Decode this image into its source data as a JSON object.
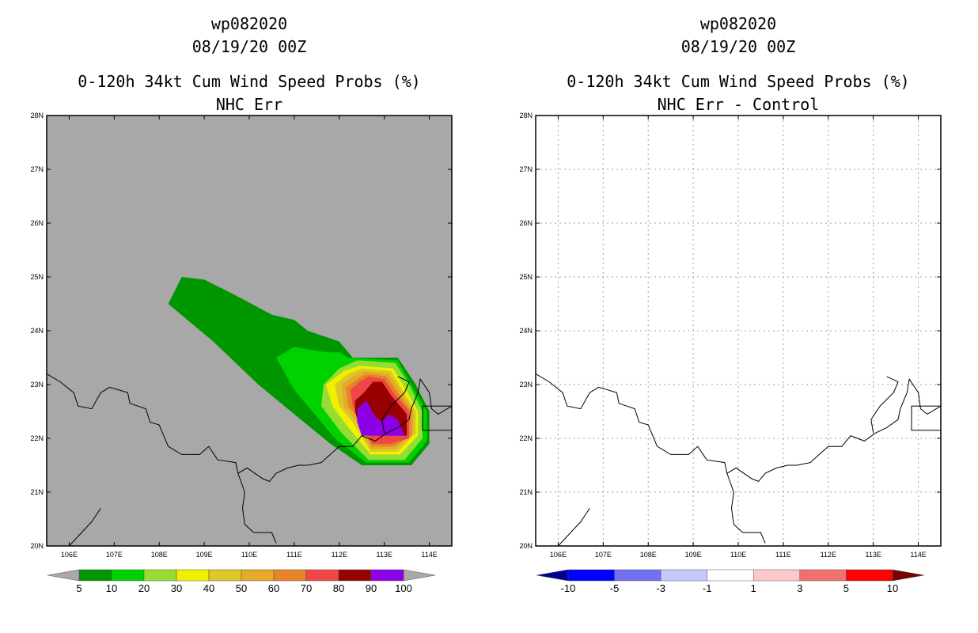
{
  "panels": [
    {
      "title_lines": [
        "wp082020",
        "08/19/20 00Z",
        "0-120h 34kt Cum Wind Speed Probs (%)",
        "NHC Err"
      ],
      "background": "#a8a8a8",
      "colorbar": {
        "labels": [
          "5",
          "10",
          "20",
          "30",
          "40",
          "50",
          "60",
          "70",
          "80",
          "90",
          "100"
        ],
        "colors": [
          "#009600",
          "#00d200",
          "#96dc32",
          "#f0f000",
          "#dcc828",
          "#e6aa28",
          "#e68228",
          "#f04646",
          "#960000",
          "#8c00e6"
        ],
        "under_color": "#a8a8a8",
        "over_color": "#a8a8a8"
      }
    },
    {
      "title_lines": [
        "wp082020",
        "08/19/20 00Z",
        "0-120h 34kt Cum Wind Speed Probs (%)",
        "NHC Err - Control"
      ],
      "background": "#ffffff",
      "colorbar": {
        "labels": [
          "-10",
          "-5",
          "-3",
          "-1",
          "1",
          "3",
          "5",
          "10"
        ],
        "colors": [
          "#0000ff",
          "#7070f0",
          "#c8c8ff",
          "#ffffff",
          "#ffc8c8",
          "#f07070",
          "#ff0000"
        ],
        "under_color": "#000096",
        "over_color": "#780000"
      }
    }
  ],
  "chart_data": [
    {
      "type": "filled-contour-map",
      "title": "0-120h 34kt Cum Wind Speed Probs (%) - NHC Err",
      "storm": "wp082020",
      "init_time": "08/19/20 00Z",
      "xlim": [
        105.5,
        114.5
      ],
      "ylim": [
        20,
        28
      ],
      "x_ticks": [
        "106E",
        "107E",
        "108E",
        "109E",
        "110E",
        "111E",
        "112E",
        "113E",
        "114E"
      ],
      "y_ticks": [
        "20N",
        "21N",
        "22N",
        "23N",
        "24N",
        "25N",
        "26N",
        "27N",
        "28N"
      ],
      "levels": [
        5,
        10,
        20,
        30,
        40,
        50,
        60,
        70,
        80,
        90,
        100
      ],
      "probability_regions": [
        {
          "min_prob": 5,
          "polygon": [
            [
              108.2,
              24.5
            ],
            [
              108.5,
              25.0
            ],
            [
              109.0,
              24.95
            ],
            [
              109.6,
              24.7
            ],
            [
              110.5,
              24.3
            ],
            [
              111.0,
              24.2
            ],
            [
              111.3,
              24.0
            ],
            [
              112.0,
              23.8
            ],
            [
              112.3,
              23.5
            ],
            [
              113.3,
              23.5
            ],
            [
              113.7,
              23.0
            ],
            [
              114.0,
              22.5
            ],
            [
              114.0,
              21.9
            ],
            [
              113.6,
              21.5
            ],
            [
              112.5,
              21.5
            ],
            [
              111.8,
              21.9
            ],
            [
              110.2,
              23.0
            ],
            [
              109.2,
              23.8
            ]
          ]
        },
        {
          "min_prob": 10,
          "polygon": [
            [
              110.6,
              23.5
            ],
            [
              111.0,
              23.7
            ],
            [
              111.7,
              23.6
            ],
            [
              112.0,
              23.6
            ],
            [
              112.2,
              23.5
            ],
            [
              113.3,
              23.45
            ],
            [
              113.6,
              23.0
            ],
            [
              113.95,
              22.5
            ],
            [
              113.95,
              21.95
            ],
            [
              113.55,
              21.55
            ],
            [
              112.6,
              21.55
            ],
            [
              111.9,
              22.0
            ],
            [
              111.0,
              22.9
            ]
          ]
        },
        {
          "min_prob": 20,
          "polygon": [
            [
              111.65,
              23.0
            ],
            [
              112.0,
              23.3
            ],
            [
              112.4,
              23.45
            ],
            [
              113.25,
              23.4
            ],
            [
              113.55,
              23.0
            ],
            [
              113.85,
              22.5
            ],
            [
              113.85,
              22.0
            ],
            [
              113.45,
              21.6
            ],
            [
              112.65,
              21.6
            ],
            [
              112.05,
              22.1
            ],
            [
              111.6,
              22.6
            ]
          ]
        },
        {
          "min_prob": 30,
          "polygon": [
            [
              111.7,
              23.0
            ],
            [
              112.1,
              23.25
            ],
            [
              112.45,
              23.35
            ],
            [
              113.2,
              23.3
            ],
            [
              113.45,
              22.95
            ],
            [
              113.75,
              22.5
            ],
            [
              113.75,
              22.05
            ],
            [
              113.35,
              21.7
            ],
            [
              112.7,
              21.7
            ],
            [
              112.2,
              22.2
            ],
            [
              111.85,
              22.6
            ]
          ]
        },
        {
          "min_prob": 40,
          "polygon": [
            [
              111.9,
              23.0
            ],
            [
              112.2,
              23.2
            ],
            [
              112.5,
              23.3
            ],
            [
              113.15,
              23.25
            ],
            [
              113.4,
              22.9
            ],
            [
              113.7,
              22.5
            ],
            [
              113.7,
              22.1
            ],
            [
              113.3,
              21.75
            ],
            [
              112.7,
              21.75
            ],
            [
              112.3,
              22.3
            ],
            [
              112.0,
              22.6
            ]
          ]
        },
        {
          "min_prob": 50,
          "polygon": [
            [
              112.05,
              23.0
            ],
            [
              112.3,
              23.15
            ],
            [
              112.55,
              23.25
            ],
            [
              113.1,
              23.2
            ],
            [
              113.35,
              22.9
            ],
            [
              113.65,
              22.5
            ],
            [
              113.65,
              22.1
            ],
            [
              113.25,
              21.8
            ],
            [
              112.7,
              21.8
            ],
            [
              112.35,
              22.35
            ],
            [
              112.1,
              22.6
            ]
          ]
        },
        {
          "min_prob": 60,
          "polygon": [
            [
              112.15,
              22.95
            ],
            [
              112.4,
              23.1
            ],
            [
              112.6,
              23.2
            ],
            [
              113.05,
              23.15
            ],
            [
              113.3,
              22.85
            ],
            [
              113.6,
              22.5
            ],
            [
              113.6,
              22.05
            ],
            [
              113.2,
              21.85
            ],
            [
              112.72,
              21.85
            ],
            [
              112.4,
              22.4
            ],
            [
              112.2,
              22.6
            ]
          ]
        },
        {
          "min_prob": 70,
          "polygon": [
            [
              112.25,
              22.9
            ],
            [
              112.45,
              23.05
            ],
            [
              112.65,
              23.15
            ],
            [
              113.0,
              23.1
            ],
            [
              113.25,
              22.8
            ],
            [
              113.55,
              22.5
            ],
            [
              113.55,
              22.0
            ],
            [
              113.15,
              21.9
            ],
            [
              112.72,
              21.9
            ],
            [
              112.45,
              22.45
            ],
            [
              112.3,
              22.6
            ]
          ]
        },
        {
          "min_prob": 80,
          "polygon": [
            [
              112.35,
              22.7
            ],
            [
              112.55,
              22.85
            ],
            [
              112.75,
              23.05
            ],
            [
              112.95,
              23.05
            ],
            [
              113.15,
              22.8
            ],
            [
              113.5,
              22.45
            ],
            [
              113.5,
              22.05
            ],
            [
              112.75,
              22.05
            ],
            [
              112.45,
              22.2
            ],
            [
              112.35,
              22.5
            ]
          ]
        },
        {
          "min_prob": 90,
          "polygon": [
            [
              112.4,
              22.55
            ],
            [
              112.6,
              22.7
            ],
            [
              112.8,
              22.4
            ],
            [
              112.95,
              22.3
            ],
            [
              113.1,
              22.45
            ],
            [
              113.3,
              22.35
            ],
            [
              113.45,
              22.05
            ],
            [
              112.5,
              22.05
            ],
            [
              112.4,
              22.3
            ]
          ]
        }
      ]
    },
    {
      "type": "filled-contour-map",
      "title": "0-120h 34kt Cum Wind Speed Probs (%) - NHC Err - Control",
      "storm": "wp082020",
      "init_time": "08/19/20 00Z",
      "xlim": [
        105.5,
        114.5
      ],
      "ylim": [
        20,
        28
      ],
      "x_ticks": [
        "106E",
        "107E",
        "108E",
        "109E",
        "110E",
        "111E",
        "112E",
        "113E",
        "114E"
      ],
      "y_ticks": [
        "20N",
        "21N",
        "22N",
        "23N",
        "24N",
        "25N",
        "26N",
        "27N",
        "28N"
      ],
      "levels": [
        -10,
        -5,
        -3,
        -1,
        1,
        3,
        5,
        10
      ],
      "grid": true,
      "probability_regions": []
    }
  ],
  "coastline": [
    [
      [
        105.5,
        23.2
      ],
      [
        105.8,
        23.05
      ],
      [
        106.1,
        22.85
      ],
      [
        106.2,
        22.6
      ],
      [
        106.5,
        22.55
      ],
      [
        106.7,
        22.85
      ],
      [
        106.9,
        22.95
      ],
      [
        107.3,
        22.85
      ],
      [
        107.35,
        22.65
      ],
      [
        107.7,
        22.55
      ],
      [
        107.8,
        22.3
      ],
      [
        108.0,
        22.25
      ],
      [
        108.2,
        21.85
      ],
      [
        108.5,
        21.7
      ],
      [
        108.9,
        21.7
      ],
      [
        109.1,
        21.85
      ],
      [
        109.3,
        21.6
      ],
      [
        109.7,
        21.55
      ],
      [
        109.75,
        21.35
      ],
      [
        109.95,
        21.45
      ],
      [
        110.3,
        21.25
      ],
      [
        110.45,
        21.2
      ],
      [
        110.6,
        21.35
      ],
      [
        110.85,
        21.45
      ],
      [
        111.1,
        21.5
      ],
      [
        111.3,
        21.5
      ],
      [
        111.6,
        21.55
      ],
      [
        111.8,
        21.7
      ],
      [
        112.0,
        21.85
      ],
      [
        112.3,
        21.85
      ],
      [
        112.5,
        22.05
      ],
      [
        112.8,
        21.95
      ],
      [
        113.05,
        22.1
      ],
      [
        113.3,
        22.2
      ],
      [
        113.55,
        22.35
      ],
      [
        113.6,
        22.55
      ],
      [
        113.75,
        22.85
      ],
      [
        113.8,
        23.1
      ],
      [
        114.0,
        22.85
      ],
      [
        114.05,
        22.55
      ],
      [
        114.2,
        22.45
      ],
      [
        114.5,
        22.6
      ]
    ],
    [
      [
        109.75,
        21.35
      ],
      [
        109.9,
        21.0
      ],
      [
        109.85,
        20.7
      ],
      [
        109.9,
        20.4
      ],
      [
        110.1,
        20.25
      ],
      [
        110.5,
        20.25
      ],
      [
        110.6,
        20.05
      ]
    ],
    [
      [
        106.7,
        20.7
      ],
      [
        106.5,
        20.45
      ],
      [
        106.0,
        20.0
      ]
    ],
    [
      [
        113.0,
        22.1
      ],
      [
        112.95,
        22.35
      ],
      [
        113.15,
        22.6
      ],
      [
        113.45,
        22.85
      ],
      [
        113.55,
        23.05
      ],
      [
        113.3,
        23.15
      ]
    ]
  ],
  "hong_kong_box": {
    "lon": [
      113.85,
      114.5
    ],
    "lat": [
      22.15,
      22.6
    ]
  }
}
